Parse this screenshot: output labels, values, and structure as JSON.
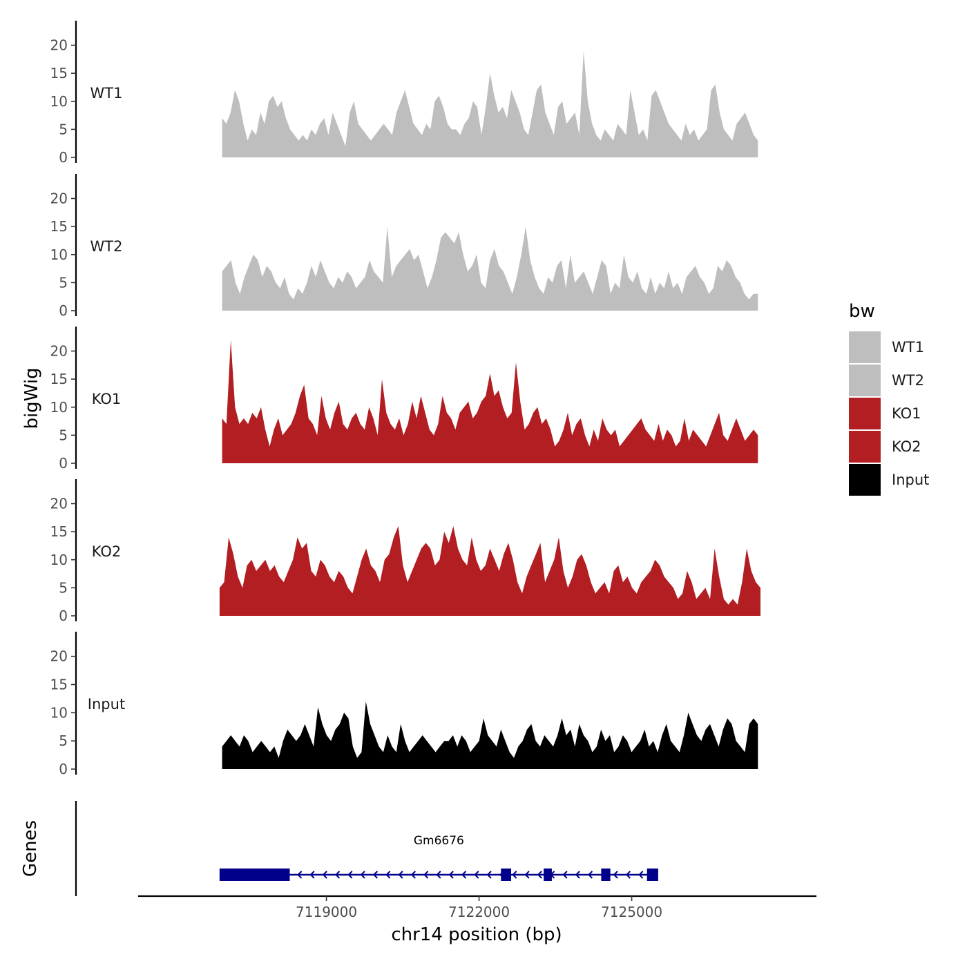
{
  "chart_data": {
    "type": "area",
    "ylabel": "bigWig",
    "xlabel": "chr14 position (bp)",
    "ylim": [
      0,
      24
    ],
    "yticks": [
      0,
      5,
      10,
      15,
      20
    ],
    "xlim": [
      7115300,
      7128630
    ],
    "xticks": [
      7119000,
      7122000,
      7125000
    ],
    "xtick_labels": [
      "7119000",
      "7122000",
      "7125000"
    ],
    "tracks": [
      {
        "name": "WT1",
        "color": "#BEBEBE",
        "x_start": 7116950,
        "x_end": 7127480,
        "values": [
          7,
          6,
          8,
          12,
          10,
          6,
          3,
          5,
          4,
          8,
          6,
          10,
          11,
          9,
          10,
          7,
          5,
          4,
          3,
          4,
          3,
          5,
          4,
          6,
          7,
          4,
          8,
          6,
          4,
          2,
          8,
          10,
          6,
          5,
          4,
          3,
          4,
          5,
          6,
          5,
          4,
          8,
          10,
          12,
          9,
          6,
          5,
          4,
          6,
          5,
          10,
          11,
          9,
          6,
          5,
          5,
          4,
          6,
          7,
          10,
          9,
          4,
          9,
          15,
          11,
          8,
          9,
          7,
          12,
          10,
          8,
          5,
          4,
          8,
          12,
          13,
          8,
          6,
          4,
          9,
          10,
          6,
          7,
          8,
          4,
          19,
          10,
          6,
          4,
          3,
          5,
          4,
          3,
          6,
          5,
          4,
          12,
          8,
          4,
          5,
          3,
          11,
          12,
          10,
          8,
          6,
          5,
          4,
          3,
          6,
          4,
          5,
          3,
          4,
          5,
          12,
          13,
          8,
          5,
          4,
          3,
          6,
          7,
          8,
          6,
          4,
          3
        ]
      },
      {
        "name": "WT2",
        "color": "#BEBEBE",
        "x_start": 7116950,
        "x_end": 7127480,
        "values": [
          7,
          8,
          9,
          5,
          3,
          6,
          8,
          10,
          9,
          6,
          8,
          7,
          5,
          4,
          6,
          3,
          2,
          4,
          3,
          5,
          8,
          6,
          9,
          7,
          5,
          4,
          6,
          5,
          7,
          6,
          4,
          5,
          6,
          9,
          7,
          6,
          5,
          15,
          6,
          8,
          9,
          10,
          11,
          9,
          10,
          7,
          4,
          6,
          9,
          13,
          14,
          13,
          12,
          14,
          10,
          7,
          8,
          10,
          5,
          4,
          9,
          11,
          8,
          7,
          5,
          3,
          6,
          10,
          15,
          9,
          6,
          4,
          3,
          6,
          5,
          8,
          9,
          4,
          10,
          5,
          6,
          7,
          5,
          3,
          6,
          9,
          8,
          3,
          5,
          4,
          10,
          6,
          5,
          7,
          4,
          3,
          6,
          3,
          5,
          4,
          7,
          4,
          5,
          3,
          6,
          7,
          8,
          6,
          5,
          3,
          4,
          8,
          7,
          9,
          8,
          6,
          5,
          3,
          2,
          3,
          3
        ]
      },
      {
        "name": "KO1",
        "color": "#B21E22",
        "x_start": 7116950,
        "x_end": 7127480,
        "values": [
          8,
          7,
          22,
          10,
          7,
          8,
          7,
          9,
          8,
          10,
          6,
          3,
          6,
          8,
          5,
          6,
          7,
          9,
          12,
          14,
          8,
          7,
          5,
          12,
          8,
          6,
          9,
          11,
          7,
          6,
          8,
          9,
          7,
          6,
          10,
          8,
          5,
          15,
          9,
          7,
          6,
          8,
          5,
          7,
          11,
          8,
          12,
          9,
          6,
          5,
          7,
          12,
          9,
          8,
          6,
          9,
          10,
          11,
          8,
          9,
          11,
          12,
          16,
          12,
          13,
          10,
          8,
          9,
          18,
          11,
          6,
          7,
          9,
          10,
          7,
          8,
          6,
          3,
          4,
          6,
          9,
          5,
          7,
          8,
          5,
          3,
          6,
          4,
          8,
          6,
          5,
          6,
          3,
          4,
          5,
          6,
          7,
          8,
          6,
          5,
          4,
          7,
          4,
          6,
          5,
          3,
          4,
          8,
          4,
          6,
          5,
          4,
          3,
          5,
          7,
          9,
          5,
          4,
          6,
          8,
          6,
          4,
          5,
          6,
          5
        ]
      },
      {
        "name": "KO2",
        "color": "#B21E22",
        "x_start": 7116900,
        "x_end": 7127530,
        "values": [
          5,
          6,
          14,
          11,
          7,
          5,
          9,
          10,
          8,
          9,
          10,
          8,
          9,
          7,
          6,
          8,
          10,
          14,
          12,
          13,
          8,
          7,
          10,
          9,
          7,
          6,
          8,
          7,
          5,
          4,
          7,
          10,
          12,
          9,
          8,
          6,
          10,
          11,
          14,
          16,
          9,
          6,
          8,
          10,
          12,
          13,
          12,
          9,
          10,
          15,
          13,
          16,
          12,
          10,
          9,
          14,
          10,
          8,
          9,
          12,
          10,
          8,
          11,
          13,
          10,
          6,
          4,
          7,
          9,
          11,
          13,
          6,
          8,
          10,
          14,
          8,
          5,
          7,
          10,
          11,
          9,
          6,
          4,
          5,
          6,
          4,
          8,
          9,
          6,
          7,
          5,
          4,
          6,
          7,
          8,
          10,
          9,
          7,
          6,
          5,
          3,
          4,
          8,
          6,
          3,
          4,
          5,
          3,
          12,
          7,
          3,
          2,
          3,
          2,
          6,
          12,
          8,
          6,
          5
        ]
      },
      {
        "name": "Input",
        "color": "#000000",
        "x_start": 7116950,
        "x_end": 7127480,
        "values": [
          4,
          5,
          6,
          5,
          4,
          6,
          5,
          3,
          4,
          5,
          4,
          3,
          4,
          2,
          5,
          7,
          6,
          5,
          6,
          8,
          6,
          4,
          11,
          8,
          6,
          5,
          7,
          8,
          10,
          9,
          4,
          2,
          3,
          12,
          8,
          6,
          4,
          3,
          6,
          4,
          3,
          8,
          5,
          3,
          4,
          5,
          6,
          5,
          4,
          3,
          4,
          5,
          5,
          6,
          4,
          6,
          5,
          3,
          4,
          5,
          9,
          6,
          5,
          4,
          7,
          5,
          3,
          2,
          4,
          5,
          7,
          8,
          5,
          4,
          6,
          5,
          4,
          6,
          9,
          6,
          7,
          4,
          8,
          6,
          5,
          3,
          4,
          7,
          5,
          6,
          3,
          4,
          6,
          5,
          3,
          4,
          5,
          7,
          4,
          5,
          3,
          6,
          8,
          5,
          4,
          3,
          6,
          10,
          8,
          6,
          5,
          7,
          8,
          6,
          4,
          7,
          9,
          8,
          5,
          4,
          3,
          8,
          9,
          8
        ]
      }
    ],
    "gene_track": {
      "label": "Genes",
      "gene_name": "Gm6676",
      "strand": "-",
      "color": "#00008B",
      "gene_start": 7116900,
      "gene_end": 7125520,
      "exons": [
        [
          7116900,
          7118280
        ],
        [
          7122430,
          7122630
        ],
        [
          7123270,
          7123430
        ],
        [
          7124400,
          7124580
        ],
        [
          7125300,
          7125520
        ]
      ]
    },
    "legend": {
      "title": "bw",
      "position": "right",
      "items": [
        {
          "label": "WT1",
          "color": "#BEBEBE"
        },
        {
          "label": "WT2",
          "color": "#BEBEBE"
        },
        {
          "label": "KO1",
          "color": "#B21E22"
        },
        {
          "label": "KO2",
          "color": "#B21E22"
        },
        {
          "label": "Input",
          "color": "#000000"
        }
      ]
    },
    "grid": false
  }
}
